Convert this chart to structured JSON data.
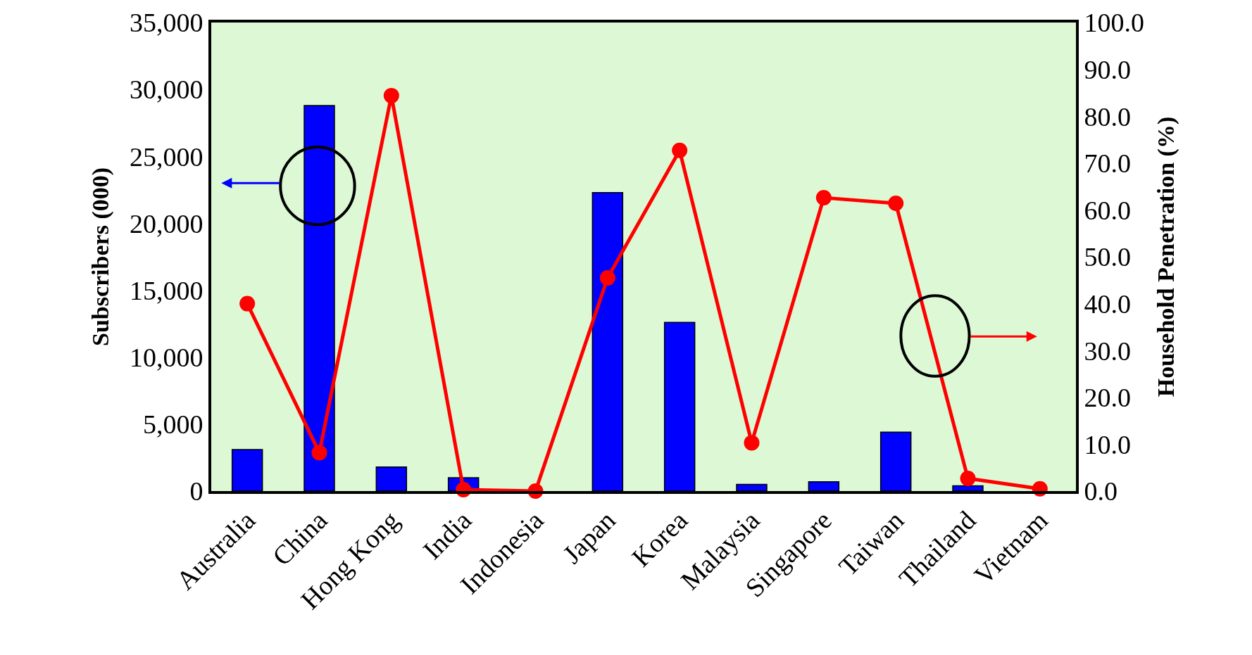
{
  "chart_data": {
    "type": "bar",
    "ylabel": "Subscribers (000)",
    "y2label": "Household Penetration (%)",
    "categories": [
      "Australia",
      "China",
      "Hong Kong",
      "India",
      "Indonesia",
      "Japan",
      "Korea",
      "Malaysia",
      "Singapore",
      "Taiwan",
      "Thailand",
      "Vietnam"
    ],
    "series": [
      {
        "color": "#0000ff",
        "values": [
          3100,
          28800,
          1800,
          1000,
          null,
          22300,
          12600,
          500,
          700,
          4400,
          400,
          null
        ]
      },
      {
        "type": "line",
        "axis": "y2",
        "color": "#ff0000",
        "marker": "circle",
        "line_style": "solid",
        "values": [
          40.0,
          8.2,
          84.4,
          0.3,
          0.0,
          45.5,
          72.7,
          10.3,
          62.6,
          61.4,
          2.7,
          0.5
        ]
      }
    ],
    "ylim": [
      0,
      35000
    ],
    "yticks": [
      0,
      {
        "value": 5000,
        "label": "5,000"
      },
      {
        "value": 10000,
        "label": "10,000"
      },
      {
        "value": 15000,
        "label": "15,000"
      },
      {
        "value": 20000,
        "label": "20,000"
      },
      {
        "value": 25000,
        "label": "25,000"
      },
      {
        "value": 30000,
        "label": "30,000"
      },
      {
        "value": 35000,
        "label": "35,000"
      }
    ],
    "y2lim": [
      0,
      100
    ],
    "y2ticks": [
      {
        "value": 0,
        "label": "0.0"
      },
      {
        "value": 10,
        "label": "10.0"
      },
      {
        "value": 20,
        "label": "20.0"
      },
      {
        "value": 30,
        "label": "30.0"
      },
      {
        "value": 40,
        "label": "40.0"
      },
      {
        "value": 50,
        "label": "50.0"
      },
      {
        "value": 60,
        "label": "60.0"
      },
      {
        "value": 70,
        "label": "70.0"
      },
      {
        "value": 80,
        "label": "80.0"
      },
      {
        "value": 90,
        "label": "90.0"
      },
      {
        "value": 100,
        "label": "100.0"
      }
    ],
    "grid": false,
    "legend": false
  }
}
